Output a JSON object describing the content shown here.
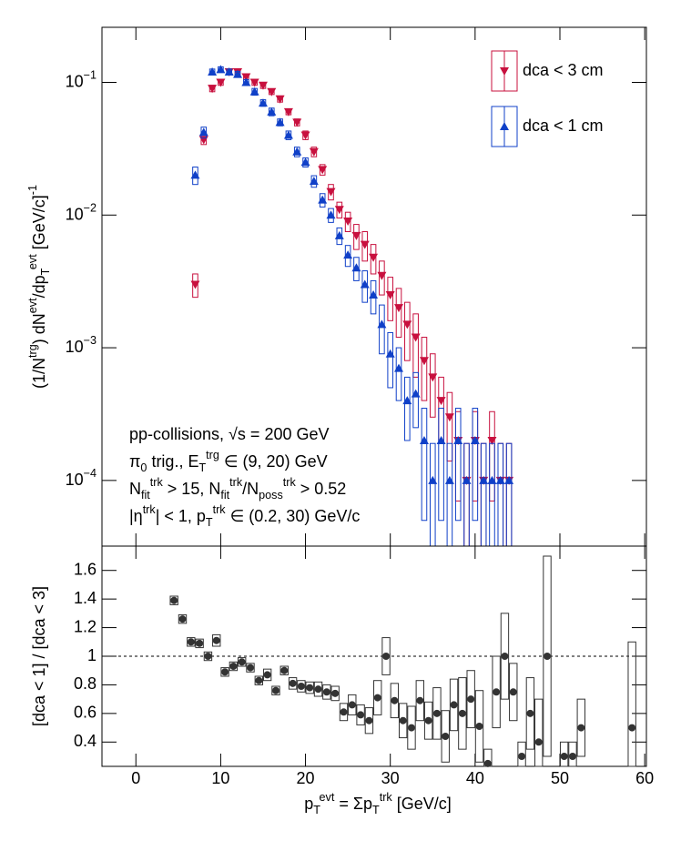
{
  "chart_data": [
    {
      "type": "scatter",
      "log_y": true,
      "ylabel": [
        {
          "base": "(1/N",
          "sup": "trg"
        },
        {
          "base": ") dN",
          "sup": "evt"
        },
        {
          "base": "/dp",
          "sub": "T",
          "sup": "evt"
        },
        {
          "base": " [GeV/c]",
          "sup": "-1"
        }
      ],
      "annotations": [
        [
          {
            "base": "pp-collisions, √s = 200 GeV"
          }
        ],
        [
          {
            "base": "π",
            "sub": "0"
          },
          {
            "base": " trig., E",
            "sub": "T",
            "sup": "trg"
          },
          {
            "base": " ∈ (9, 20) GeV"
          }
        ],
        [
          {
            "base": "N",
            "sub": "fit",
            "sup": "trk"
          },
          {
            "base": " > 15, N",
            "sub": "fit",
            "sup": "trk"
          },
          {
            "base": "/N",
            "sub": "poss",
            "sup": "trk"
          },
          {
            "base": " > 0.52"
          }
        ],
        [
          {
            "base": "|η",
            "sup": "trk"
          },
          {
            "base": "| < 1, p",
            "sub": "T",
            "sup": "trk"
          },
          {
            "base": " ∈ (0.2, 30) GeV/c"
          }
        ]
      ],
      "x": [
        7,
        8,
        9,
        10,
        11,
        12,
        13,
        14,
        15,
        16,
        17,
        18,
        19,
        20,
        21,
        22,
        23,
        24,
        25,
        26,
        27,
        28,
        29,
        30,
        31,
        32,
        33,
        34,
        35,
        36,
        37,
        38,
        39,
        40,
        41,
        42,
        43,
        44
      ],
      "series": [
        {
          "name": "dca < 3 cm",
          "color": "#c8103e",
          "marker": "down",
          "values": [
            0.003,
            0.037,
            0.09,
            0.1,
            0.12,
            0.12,
            0.11,
            0.1,
            0.095,
            0.085,
            0.075,
            0.06,
            0.05,
            0.04,
            0.03,
            0.022,
            0.015,
            0.011,
            0.009,
            0.007,
            0.006,
            0.0048,
            0.0035,
            0.0025,
            0.002,
            0.0015,
            0.0012,
            0.0008,
            0.0006,
            0.0004,
            0.0003,
            0.0002,
            0.0001,
            0.0002,
            0.0001,
            0.0002,
            0.0001,
            0.0001
          ],
          "errors": [
            0.0006,
            0.003,
            0.005,
            0.005,
            0.006,
            0.006,
            0.005,
            0.005,
            0.005,
            0.004,
            0.004,
            0.003,
            0.003,
            0.003,
            0.0025,
            0.002,
            0.002,
            0.0015,
            0.0015,
            0.0015,
            0.0015,
            0.0012,
            0.001,
            0.0009,
            0.0008,
            0.0007,
            0.0006,
            0.0004,
            0.0003,
            0.0002,
            0.00016,
            0.00013,
            9e-05,
            0.00013,
            9e-05,
            0.00013,
            9e-05,
            9e-05
          ]
        },
        {
          "name": "dca < 1 cm",
          "color": "#1040c8",
          "marker": "up",
          "values": [
            0.02,
            0.042,
            0.12,
            0.125,
            0.12,
            0.115,
            0.1,
            0.085,
            0.07,
            0.06,
            0.05,
            0.04,
            0.03,
            0.025,
            0.018,
            0.013,
            0.01,
            0.007,
            0.005,
            0.004,
            0.003,
            0.0025,
            0.0015,
            0.0009,
            0.0007,
            0.0004,
            0.00045,
            0.0002,
            0.0001,
            0.0002,
            0.0001,
            0.0002,
            0.0001,
            0.0002,
            0.0001,
            0.0001,
            0.0001,
            0.0001
          ],
          "errors": [
            0.003,
            0.004,
            0.006,
            0.006,
            0.006,
            0.006,
            0.005,
            0.005,
            0.004,
            0.004,
            0.003,
            0.003,
            0.0025,
            0.002,
            0.0018,
            0.0015,
            0.0012,
            0.001,
            0.0009,
            0.0008,
            0.0008,
            0.0007,
            0.0006,
            0.0004,
            0.0003,
            0.0002,
            0.0002,
            0.00015,
            9e-05,
            0.00015,
            9e-05,
            0.00015,
            9e-05,
            0.00015,
            9e-05,
            9e-05,
            9e-05,
            9e-05
          ]
        }
      ],
      "xlim": [
        -4,
        60.2
      ],
      "xticks": [
        0,
        10,
        20,
        30,
        40,
        50,
        60
      ],
      "ylim": [
        3.2e-05,
        0.26
      ],
      "yticks": [
        {
          "value": 0.1,
          "label": {
            "base": "10",
            "sup": "−1"
          }
        },
        {
          "value": 0.01,
          "label": {
            "base": "10",
            "sup": "−2"
          }
        },
        {
          "value": 0.001,
          "label": {
            "base": "10",
            "sup": "−3"
          }
        },
        {
          "value": 0.0001,
          "label": {
            "base": "10",
            "sup": "−4"
          }
        }
      ]
    },
    {
      "type": "scatter",
      "ylabel": "[dca < 1] / [dca < 3]",
      "xlabel": [
        {
          "base": "p",
          "sub": "T",
          "sup": "evt"
        },
        {
          "base": " = Σp",
          "sub": "T",
          "sup": "trk"
        },
        {
          "base": " [GeV/c]"
        }
      ],
      "x": [
        4.5,
        5.5,
        6.5,
        7.5,
        8.5,
        9.5,
        10.5,
        11.5,
        12.5,
        13.5,
        14.5,
        15.5,
        16.5,
        17.5,
        18.5,
        19.5,
        20.5,
        21.5,
        22.5,
        23.5,
        24.5,
        25.5,
        26.5,
        27.5,
        28.5,
        29.5,
        30.5,
        31.5,
        32.5,
        33.5,
        34.5,
        35.5,
        36.5,
        37.5,
        38.5,
        39.5,
        40.5,
        41.5,
        42.5,
        43.5,
        44.5,
        45.5,
        46.5,
        47.5,
        48.5,
        50.5,
        51.5,
        52.5,
        58.5
      ],
      "series": [
        {
          "color": "#333333",
          "marker": "dot",
          "values": [
            1.39,
            1.26,
            1.1,
            1.09,
            1.0,
            1.11,
            0.89,
            0.93,
            0.96,
            0.92,
            0.83,
            0.87,
            0.76,
            0.9,
            0.81,
            0.79,
            0.78,
            0.77,
            0.75,
            0.74,
            0.61,
            0.66,
            0.59,
            0.55,
            0.71,
            1.0,
            0.69,
            0.55,
            0.5,
            0.69,
            0.55,
            0.6,
            0.44,
            0.66,
            0.6,
            0.7,
            0.51,
            0.25,
            0.75,
            1.0,
            0.75,
            0.3,
            0.6,
            0.4,
            1.0,
            0.3,
            0.3,
            0.5,
            0.5
          ],
          "errors": [
            0.03,
            0.03,
            0.03,
            0.03,
            0.03,
            0.04,
            0.03,
            0.03,
            0.03,
            0.03,
            0.03,
            0.04,
            0.03,
            0.03,
            0.04,
            0.04,
            0.04,
            0.05,
            0.05,
            0.05,
            0.06,
            0.07,
            0.07,
            0.09,
            0.12,
            0.13,
            0.12,
            0.12,
            0.15,
            0.14,
            0.13,
            0.18,
            0.18,
            0.18,
            0.25,
            0.2,
            0.25,
            0.1,
            0.25,
            0.3,
            0.2,
            0.1,
            0.25,
            0.3,
            0.7,
            0.1,
            0.1,
            0.2,
            0.6
          ]
        }
      ],
      "reference_line": 1,
      "xlim": [
        -4,
        60.2
      ],
      "xticks": [
        0,
        10,
        20,
        30,
        40,
        50,
        60
      ],
      "ylim": [
        0.23,
        1.77
      ],
      "yticks": [
        0.4,
        0.6,
        0.8,
        1,
        1.2,
        1.4,
        1.6
      ]
    }
  ]
}
